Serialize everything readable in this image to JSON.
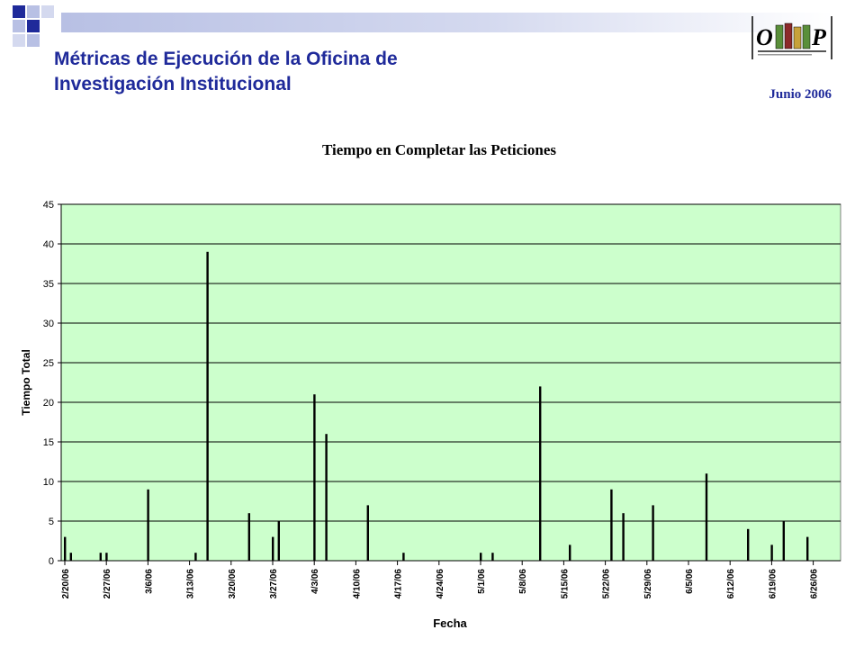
{
  "header": {
    "title_line1": "Métricas de Ejecución de la Oficina de",
    "title_line2": "Investigación Institucional",
    "date": "Junio 2006",
    "logo_text": "OIIP"
  },
  "colors": {
    "title": "#1f2a9a",
    "plot_bg": "#ccffcc",
    "bars": "#000000",
    "deco_dark": "#1f2a9a",
    "deco_light": "#b8c0e4"
  },
  "chart_data": {
    "type": "bar",
    "title": "Tiempo en Completar las Peticiones",
    "xlabel": "Fecha",
    "ylabel": "Tiempo Total",
    "ylim": [
      0,
      45
    ],
    "yticks": [
      0,
      5,
      10,
      15,
      20,
      25,
      30,
      35,
      40,
      45
    ],
    "xlim": [
      "2006-02-20",
      "2006-06-30"
    ],
    "xtick_labels": [
      "2/20/06",
      "2/27/06",
      "3/6/06",
      "3/13/06",
      "3/20/06",
      "3/27/06",
      "4/3/06",
      "4/10/06",
      "4/17/06",
      "4/24/06",
      "5/1/06",
      "5/8/06",
      "5/15/06",
      "5/22/06",
      "5/29/06",
      "6/5/06",
      "6/12/06",
      "6/19/06",
      "6/26/06"
    ],
    "grid": true,
    "x": [
      "2006-02-20",
      "2006-02-21",
      "2006-02-26",
      "2006-02-27",
      "2006-03-06",
      "2006-03-14",
      "2006-03-16",
      "2006-03-23",
      "2006-03-27",
      "2006-03-28",
      "2006-04-03",
      "2006-04-05",
      "2006-04-12",
      "2006-04-18",
      "2006-05-01",
      "2006-05-03",
      "2006-05-11",
      "2006-05-16",
      "2006-05-23",
      "2006-05-25",
      "2006-05-30",
      "2006-06-08",
      "2006-06-15",
      "2006-06-19",
      "2006-06-21",
      "2006-06-25"
    ],
    "values": [
      3,
      1,
      1,
      1,
      9,
      1,
      39,
      6,
      3,
      5,
      21,
      16,
      7,
      1,
      1,
      1,
      22,
      2,
      9,
      6,
      7,
      11,
      4,
      2,
      5,
      3
    ]
  }
}
